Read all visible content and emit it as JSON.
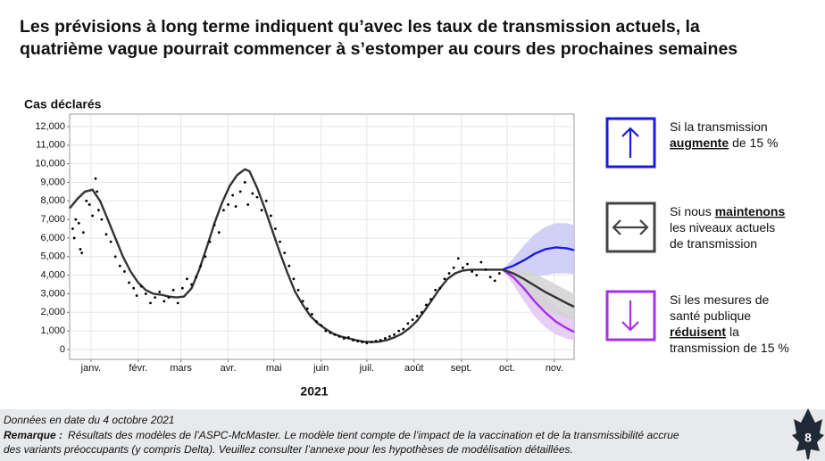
{
  "chart_data": {
    "type": "line",
    "title": [
      "Les prévisions à long terme indiquent qu’avec les taux de transmission actuels, la",
      "quatrième vague pourrait commencer à s’estomper au cours des prochaines semaines"
    ],
    "ylabel": "Cas déclarés",
    "xlabel": "2021",
    "xlim": [
      1,
      332
    ],
    "xticks": [
      {
        "value": 15,
        "label": "janv."
      },
      {
        "value": 46,
        "label": "févr."
      },
      {
        "value": 74,
        "label": "mars"
      },
      {
        "value": 105,
        "label": "avr."
      },
      {
        "value": 135,
        "label": "mai"
      },
      {
        "value": 166,
        "label": "juin"
      },
      {
        "value": 196,
        "label": "juil."
      },
      {
        "value": 227,
        "label": "août"
      },
      {
        "value": 258,
        "label": "sept."
      },
      {
        "value": 288,
        "label": "oct."
      },
      {
        "value": 319,
        "label": "nov."
      }
    ],
    "ylim": [
      -530,
      12670
    ],
    "yticks": [
      0,
      {
        "value": 1000,
        "label": "1,000"
      },
      {
        "value": 2000,
        "label": "2,000"
      },
      {
        "value": 3000,
        "label": "3,000"
      },
      {
        "value": 4000,
        "label": "4,000"
      },
      {
        "value": 5000,
        "label": "5,000"
      },
      {
        "value": 6000,
        "label": "6,000"
      },
      {
        "value": 7000,
        "label": "7,000"
      },
      {
        "value": 8000,
        "label": "8,000"
      },
      {
        "value": 9000,
        "label": "9,000"
      },
      {
        "value": 10000,
        "label": "10,000"
      },
      {
        "value": 11000,
        "label": "11,000"
      },
      {
        "value": 12000,
        "label": "12,000"
      }
    ],
    "grid": true,
    "bands": [
      {
        "color": "#c9c9f7",
        "x": [
          285,
          292,
          299,
          306,
          313,
          320,
          327,
          332
        ],
        "lower": [
          4300,
          4100,
          4000,
          3950,
          4000,
          4100,
          4100,
          4050
        ],
        "upper": [
          4300,
          4900,
          5600,
          6200,
          6600,
          6800,
          6800,
          6700
        ]
      },
      {
        "color": "#e3c6f5",
        "x": [
          285,
          292,
          299,
          306,
          313,
          320,
          327,
          332
        ],
        "lower": [
          4300,
          3500,
          2600,
          1800,
          1200,
          800,
          600,
          500
        ],
        "upper": [
          4300,
          4200,
          3900,
          3400,
          2800,
          2300,
          1900,
          1700
        ]
      },
      {
        "color": "#d2d2d2",
        "x": [
          285,
          292,
          299,
          306,
          313,
          320,
          327,
          332
        ],
        "lower": [
          4300,
          3800,
          3100,
          2600,
          2200,
          1900,
          1700,
          1600
        ],
        "upper": [
          4300,
          4400,
          4300,
          4100,
          3800,
          3500,
          3200,
          3000
        ]
      }
    ],
    "series": [
      {
        "color": "#333333",
        "x": [
          1,
          6,
          11,
          16,
          21,
          26,
          31,
          36,
          41,
          46,
          51,
          56,
          61,
          66,
          71,
          76,
          81,
          86,
          91,
          96,
          101,
          106,
          111,
          116,
          119,
          124,
          129,
          134,
          139,
          144,
          149,
          154,
          159,
          164,
          169,
          174,
          179,
          184,
          189,
          194,
          199,
          204,
          209,
          214,
          219,
          224,
          229,
          234,
          239,
          244,
          249,
          254,
          259,
          264,
          269,
          274,
          279,
          285
        ],
        "values": [
          7600,
          8100,
          8500,
          8600,
          8000,
          7000,
          6000,
          5000,
          4200,
          3600,
          3200,
          3000,
          2950,
          2850,
          2800,
          2850,
          3300,
          4300,
          5500,
          6800,
          7900,
          8800,
          9400,
          9700,
          9600,
          8700,
          7600,
          6400,
          5200,
          4100,
          3100,
          2400,
          1800,
          1400,
          1100,
          850,
          700,
          600,
          500,
          420,
          400,
          420,
          500,
          650,
          850,
          1150,
          1550,
          2100,
          2700,
          3300,
          3800,
          4100,
          4250,
          4300,
          4300,
          4300,
          4300,
          4300
        ]
      },
      {
        "color": "#1a1ae0",
        "x": [
          285,
          292,
          299,
          306,
          313,
          320,
          327,
          332
        ],
        "values": [
          4300,
          4500,
          4800,
          5150,
          5400,
          5500,
          5450,
          5350
        ]
      },
      {
        "color": "#a530e8",
        "x": [
          285,
          292,
          299,
          306,
          313,
          320,
          327,
          332
        ],
        "values": [
          4300,
          3900,
          3300,
          2600,
          2000,
          1500,
          1150,
          950
        ]
      },
      {
        "color": "#333333",
        "x": [
          285,
          292,
          299,
          306,
          313,
          320,
          327,
          332
        ],
        "values": [
          4300,
          4100,
          3800,
          3450,
          3100,
          2800,
          2500,
          2300
        ]
      }
    ],
    "points": {
      "color": "#000000",
      "x": [
        3,
        4,
        5,
        7,
        8,
        9,
        10,
        12,
        14,
        16,
        18,
        19,
        20,
        22,
        25,
        28,
        31,
        34,
        37,
        40,
        43,
        45,
        48,
        51,
        54,
        57,
        60,
        63,
        66,
        69,
        72,
        75,
        78,
        81,
        84,
        87,
        90,
        93,
        96,
        99,
        102,
        105,
        108,
        110,
        113,
        116,
        118,
        121,
        124,
        127,
        130,
        133,
        136,
        139,
        142,
        145,
        148,
        151,
        154,
        157,
        160,
        163,
        166,
        169,
        172,
        175,
        178,
        181,
        184,
        187,
        190,
        193,
        196,
        199,
        202,
        205,
        208,
        211,
        214,
        217,
        220,
        223,
        226,
        229,
        232,
        235,
        238,
        241,
        244,
        247,
        250,
        253,
        256,
        259,
        262,
        265,
        268,
        271,
        274,
        277,
        280,
        283
      ],
      "values": [
        6500,
        6000,
        7000,
        6800,
        5400,
        5200,
        6300,
        8000,
        7800,
        7200,
        9200,
        8500,
        7500,
        7000,
        6200,
        5800,
        5000,
        4500,
        4200,
        3600,
        3300,
        2900,
        3400,
        3000,
        2500,
        2800,
        3100,
        2600,
        2800,
        3200,
        2500,
        3300,
        3800,
        3500,
        3900,
        4500,
        5000,
        5800,
        6700,
        6300,
        7500,
        7800,
        8300,
        7700,
        8500,
        9000,
        7800,
        8400,
        8200,
        7500,
        8000,
        7200,
        6500,
        5800,
        5200,
        4500,
        3800,
        3200,
        2600,
        2200,
        1900,
        1500,
        1300,
        1000,
        900,
        800,
        700,
        600,
        650,
        500,
        450,
        400,
        350,
        400,
        450,
        500,
        600,
        700,
        800,
        1000,
        1100,
        1400,
        1600,
        1800,
        2000,
        2400,
        2700,
        3200,
        3300,
        3800,
        4100,
        4400,
        4900,
        4400,
        4600,
        4200,
        4000,
        4700,
        4300,
        3900,
        3700,
        4100
      ]
    },
    "legend": [
      {
        "color": "#1a1ae0",
        "icon": "up",
        "lines": [
          [
            {
              "text": "Si la transmission",
              "bold": false
            }
          ],
          [
            {
              "text": "augmente",
              "bold": true
            },
            {
              "text": "de 15 %",
              "bold": false
            }
          ]
        ]
      },
      {
        "color": "#444444",
        "icon": "both",
        "lines": [
          [
            {
              "text": "Si nous",
              "bold": false
            },
            {
              "text": "maintenons",
              "bold": true
            }
          ],
          [
            {
              "text": "les niveaux actuels",
              "bold": false
            }
          ],
          [
            {
              "text": "de transmission",
              "bold": false
            }
          ]
        ]
      },
      {
        "color": "#a530e8",
        "icon": "down",
        "lines": [
          [
            {
              "text": "Si les mesures de",
              "bold": false
            }
          ],
          [
            {
              "text": "santé publique",
              "bold": false
            }
          ],
          [
            {
              "text": "réduisent",
              "bold": true
            },
            {
              "text": "la",
              "bold": false
            }
          ],
          [
            {
              "text": "transmission de 15 %",
              "bold": false
            }
          ]
        ]
      }
    ]
  },
  "footer": {
    "date": "Données en date du 4 octobre 2021",
    "note_label": "Remarque :",
    "note": [
      "Résultats des modèles de l’ASPC-McMaster. Le modèle tient compte de l’impact de la vaccination et de la transmissibilité accrue",
      "des variants préoccupants (y compris Delta). Veuillez consulter l’annexe pour les hypothèses de modélisation détaillées."
    ]
  },
  "page_number": "8"
}
